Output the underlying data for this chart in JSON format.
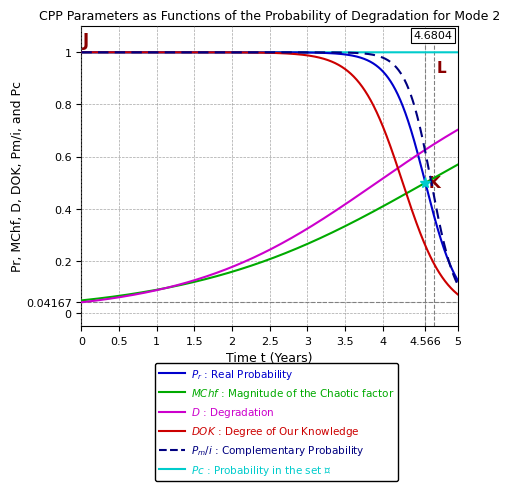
{
  "title": "CPP Parameters as Functions of the Probability of Degradation for Mode 2",
  "xlabel": "Time t (Years)",
  "ylabel": "Pr, MChf, D, DOK, Pm/i, and Pc",
  "xlim": [
    0,
    5
  ],
  "ylim": [
    -0.05,
    1.1
  ],
  "t_max": 4.6804,
  "t_cross": 4.566,
  "label_J": "J",
  "label_L": "L",
  "label_K": "K",
  "annotation_box": "4.6804",
  "Pr_color": "#0000CC",
  "MChf_color": "#00AA00",
  "D_color": "#CC00CC",
  "DOK_color": "#CC0000",
  "Pmi_color": "#000080",
  "Pc_color": "#00CCCC",
  "background_color": "#ffffff",
  "title_fontsize": 9,
  "axis_fontsize": 9,
  "tick_fontsize": 8,
  "D_0": 0.04167,
  "k_Pr": 4.5,
  "k_DOK": 3.5,
  "k_D": 1.6,
  "k_MChf": 1.2,
  "k_Pmi": 6.0,
  "shift_Pmi": 0.08
}
